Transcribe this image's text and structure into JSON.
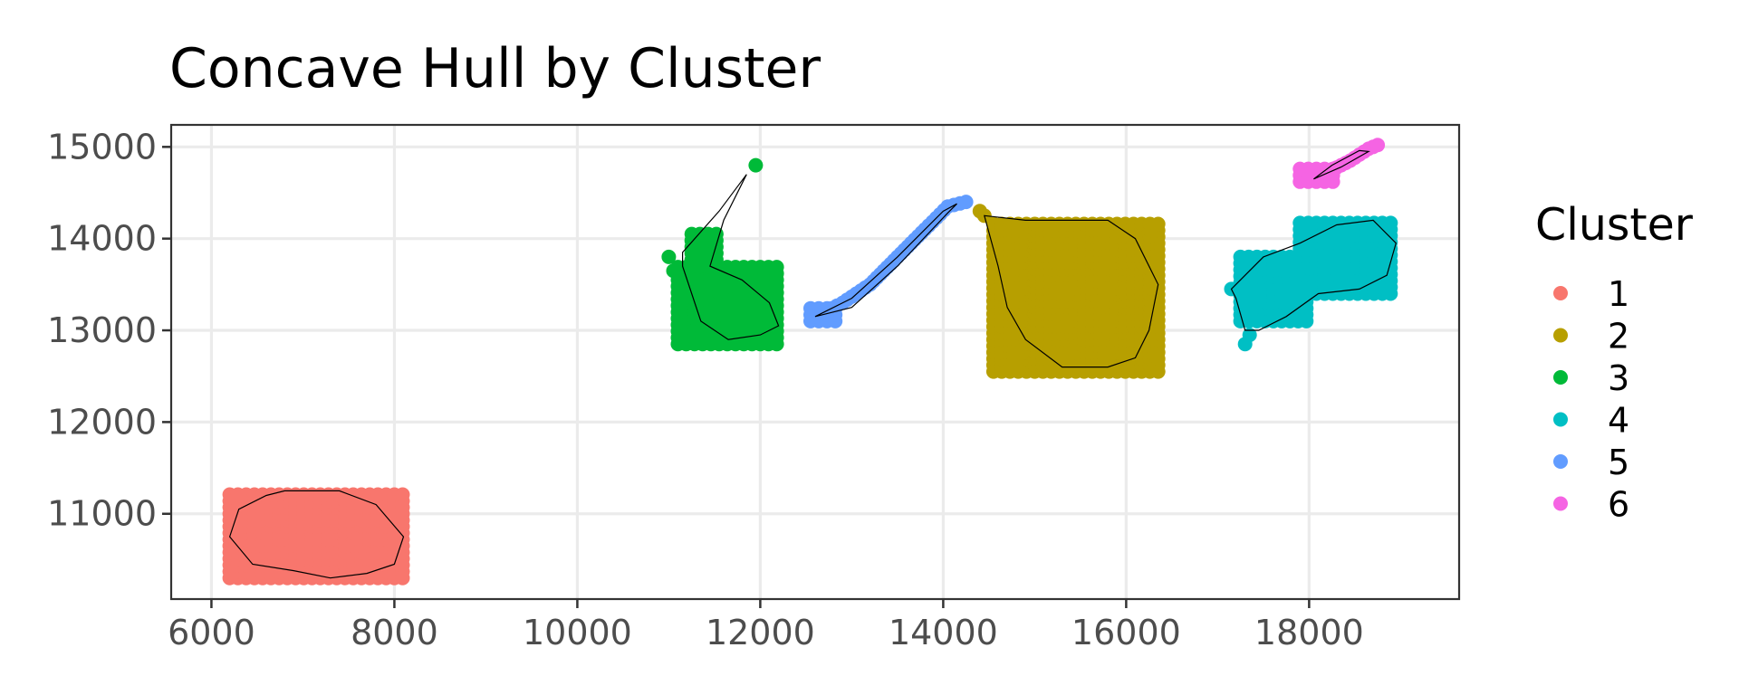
{
  "chart_data": {
    "type": "scatter",
    "title": "Concave Hull by Cluster",
    "xlabel": "",
    "ylabel": "",
    "xlim": [
      5560,
      19640
    ],
    "ylim": [
      10070,
      15240
    ],
    "x_ticks": [
      6000,
      8000,
      10000,
      12000,
      14000,
      16000,
      18000
    ],
    "y_ticks": [
      11000,
      12000,
      13000,
      14000,
      15000
    ],
    "x_tick_labels": [
      "6000",
      "8000",
      "10000",
      "12000",
      "14000",
      "16000",
      "18000"
    ],
    "y_tick_labels": [
      "11000",
      "12000",
      "13000",
      "14000",
      "15000"
    ],
    "grid": true,
    "legend": {
      "title": "Cluster",
      "position": "right"
    },
    "series": [
      {
        "name": "1",
        "color": "#F8766D",
        "regions": [
          [
            6200,
            10300,
            8150,
            11250
          ]
        ],
        "hull": [
          [
            6600,
            11200
          ],
          [
            6800,
            11250
          ],
          [
            7400,
            11250
          ],
          [
            7800,
            11100
          ],
          [
            8100,
            10750
          ],
          [
            8000,
            10450
          ],
          [
            7700,
            10350
          ],
          [
            7300,
            10300
          ],
          [
            6900,
            10380
          ],
          [
            6450,
            10450
          ],
          [
            6200,
            10750
          ],
          [
            6300,
            11050
          ]
        ]
      },
      {
        "name": "2",
        "color": "#B79F00",
        "regions": [
          [
            14550,
            12550,
            16350,
            14200
          ]
        ],
        "extra_points": [
          [
            14400,
            14300
          ],
          [
            14450,
            14250
          ]
        ],
        "hull": [
          [
            14450,
            14250
          ],
          [
            14900,
            14200
          ],
          [
            15800,
            14200
          ],
          [
            16100,
            14000
          ],
          [
            16350,
            13500
          ],
          [
            16250,
            13000
          ],
          [
            16100,
            12700
          ],
          [
            15800,
            12600
          ],
          [
            15300,
            12600
          ],
          [
            14900,
            12900
          ],
          [
            14700,
            13250
          ],
          [
            14600,
            13700
          ],
          [
            14450,
            14250
          ]
        ]
      },
      {
        "name": "3",
        "color": "#00BA38",
        "regions": [
          [
            11100,
            12850,
            12250,
            13750
          ],
          [
            11250,
            13700,
            11550,
            14100
          ]
        ],
        "extra_points": [
          [
            11950,
            14800
          ],
          [
            11000,
            13800
          ],
          [
            11050,
            13650
          ]
        ],
        "hull": [
          [
            11150,
            13850
          ],
          [
            11550,
            14300
          ],
          [
            11850,
            14700
          ],
          [
            11600,
            14200
          ],
          [
            11450,
            13700
          ],
          [
            11800,
            13550
          ],
          [
            12100,
            13300
          ],
          [
            12200,
            13050
          ],
          [
            12000,
            12950
          ],
          [
            11650,
            12900
          ],
          [
            11350,
            13100
          ],
          [
            11250,
            13400
          ],
          [
            11150,
            13700
          ]
        ]
      },
      {
        "name": "4",
        "color": "#00BFC4",
        "regions": [
          [
            17250,
            13100,
            18000,
            13850
          ],
          [
            17900,
            13400,
            18950,
            14200
          ]
        ],
        "extra_points": [
          [
            17150,
            13450
          ],
          [
            17300,
            12850
          ],
          [
            17350,
            12950
          ]
        ],
        "hull": [
          [
            17150,
            13450
          ],
          [
            17500,
            13800
          ],
          [
            17900,
            13950
          ],
          [
            18300,
            14150
          ],
          [
            18700,
            14200
          ],
          [
            18950,
            13950
          ],
          [
            18850,
            13600
          ],
          [
            18550,
            13450
          ],
          [
            18100,
            13400
          ],
          [
            17750,
            13150
          ],
          [
            17450,
            13000
          ],
          [
            17300,
            13000
          ],
          [
            17200,
            13350
          ],
          [
            17150,
            13450
          ]
        ]
      },
      {
        "name": "5",
        "color": "#619CFF",
        "regions": [
          [
            12550,
            13100,
            12900,
            13250
          ]
        ],
        "curve": [
          [
            12600,
            13150
          ],
          [
            12900,
            13300
          ],
          [
            13200,
            13500
          ],
          [
            13500,
            13800
          ],
          [
            13800,
            14100
          ],
          [
            14050,
            14350
          ],
          [
            14250,
            14400
          ]
        ],
        "hull": [
          [
            12600,
            13150
          ],
          [
            13000,
            13350
          ],
          [
            13500,
            13800
          ],
          [
            14000,
            14300
          ],
          [
            14150,
            14380
          ],
          [
            14050,
            14280
          ],
          [
            13500,
            13700
          ],
          [
            13000,
            13250
          ],
          [
            12600,
            13150
          ]
        ]
      },
      {
        "name": "6",
        "color": "#F564E3",
        "regions": [
          [
            17900,
            14620,
            18300,
            14800
          ]
        ],
        "curve": [
          [
            18000,
            14650
          ],
          [
            18250,
            14750
          ],
          [
            18450,
            14850
          ],
          [
            18650,
            14980
          ],
          [
            18750,
            15020
          ]
        ],
        "hull": [
          [
            18050,
            14650
          ],
          [
            18350,
            14780
          ],
          [
            18650,
            14950
          ],
          [
            18550,
            14960
          ],
          [
            18250,
            14800
          ],
          [
            18050,
            14650
          ]
        ]
      }
    ]
  }
}
